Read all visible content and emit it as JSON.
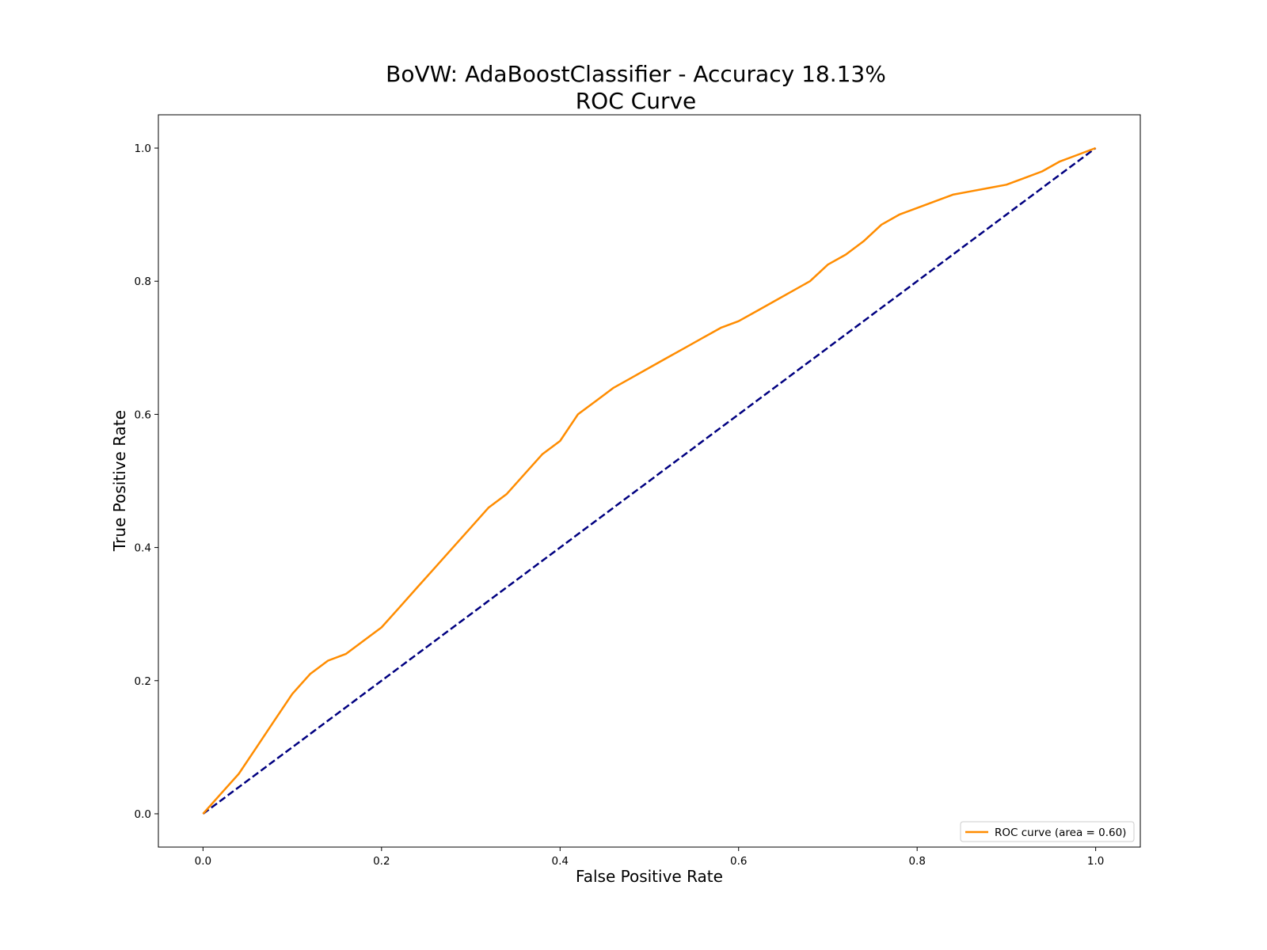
{
  "chart_data": {
    "type": "line",
    "title": "BoVW: AdaBoostClassifier - Accuracy 18.13%",
    "subtitle": "ROC Curve",
    "xlabel": "False Positive Rate",
    "ylabel": "True Positive Rate",
    "xlim": [
      -0.05,
      1.05
    ],
    "ylim": [
      -0.05,
      1.05
    ],
    "xticks": [
      "0.0",
      "0.2",
      "0.4",
      "0.6",
      "0.8",
      "1.0"
    ],
    "yticks": [
      "0.0",
      "0.2",
      "0.4",
      "0.6",
      "0.8",
      "1.0"
    ],
    "grid": false,
    "legend_position": "lower right",
    "series": [
      {
        "name": "ROC curve (area = 0.60)",
        "color": "#ff8c00",
        "style": "solid",
        "x": [
          0.0,
          0.02,
          0.04,
          0.06,
          0.08,
          0.1,
          0.12,
          0.14,
          0.16,
          0.18,
          0.2,
          0.22,
          0.24,
          0.26,
          0.28,
          0.3,
          0.32,
          0.34,
          0.36,
          0.38,
          0.4,
          0.42,
          0.44,
          0.46,
          0.48,
          0.5,
          0.52,
          0.54,
          0.56,
          0.58,
          0.6,
          0.62,
          0.64,
          0.66,
          0.68,
          0.7,
          0.72,
          0.74,
          0.76,
          0.78,
          0.8,
          0.82,
          0.84,
          0.86,
          0.88,
          0.9,
          0.92,
          0.94,
          0.96,
          0.98,
          1.0
        ],
        "y": [
          0.0,
          0.03,
          0.06,
          0.1,
          0.14,
          0.18,
          0.21,
          0.23,
          0.24,
          0.26,
          0.28,
          0.31,
          0.34,
          0.37,
          0.4,
          0.43,
          0.46,
          0.48,
          0.51,
          0.54,
          0.56,
          0.6,
          0.62,
          0.64,
          0.655,
          0.67,
          0.685,
          0.7,
          0.715,
          0.73,
          0.74,
          0.755,
          0.77,
          0.785,
          0.8,
          0.825,
          0.84,
          0.86,
          0.885,
          0.9,
          0.91,
          0.92,
          0.93,
          0.935,
          0.94,
          0.945,
          0.955,
          0.965,
          0.98,
          0.99,
          1.0
        ]
      },
      {
        "name": "",
        "color": "#000080",
        "style": "dashed",
        "x": [
          0.0,
          1.0
        ],
        "y": [
          0.0,
          1.0
        ]
      }
    ]
  }
}
